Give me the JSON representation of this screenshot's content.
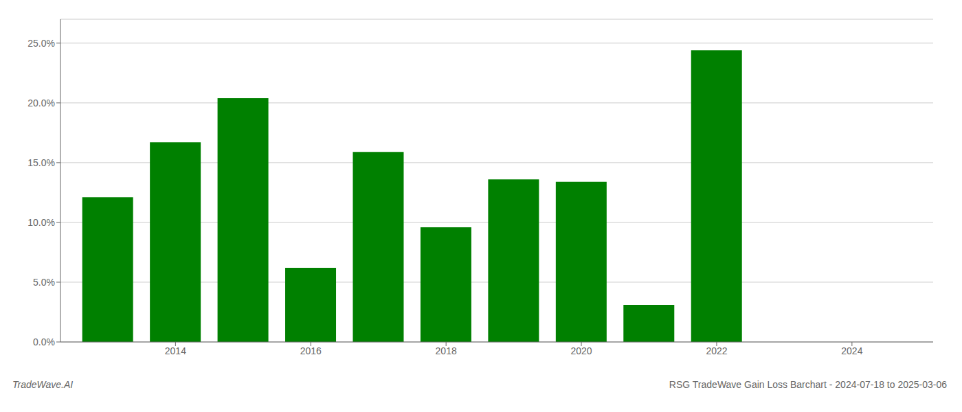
{
  "chart_data": {
    "type": "bar",
    "title": "RSG TradeWave Gain Loss Barchart - 2024-07-18 to 2025-03-06",
    "annotations": [
      "TradeWave.AI"
    ],
    "x": [
      2013,
      2014,
      2015,
      2016,
      2017,
      2018,
      2019,
      2020,
      2021,
      2022
    ],
    "values": [
      0.121,
      0.167,
      0.204,
      0.062,
      0.159,
      0.096,
      0.136,
      0.134,
      0.031,
      0.244
    ],
    "color": "#008000",
    "xlim": [
      2012.3,
      2025.2
    ],
    "xticks": [
      2014,
      2016,
      2018,
      2020,
      2022,
      2024
    ],
    "ylim": [
      0,
      0.27
    ],
    "yticks": [
      {
        "value": 0.0,
        "label": "0.0%"
      },
      {
        "value": 0.05,
        "label": "5.0%"
      },
      {
        "value": 0.1,
        "label": "10.0%"
      },
      {
        "value": 0.15,
        "label": "15.0%"
      },
      {
        "value": 0.2,
        "label": "20.0%"
      },
      {
        "value": 0.25,
        "label": "25.0%"
      }
    ],
    "grid": true
  }
}
